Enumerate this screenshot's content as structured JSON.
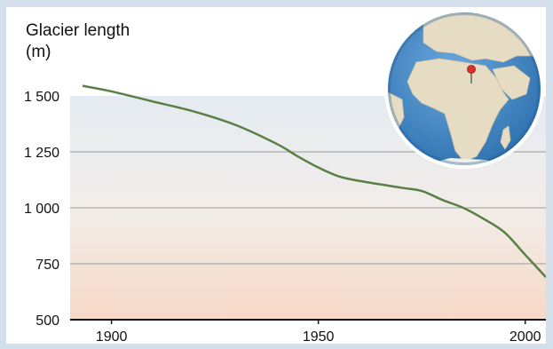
{
  "chart_data": {
    "type": "line",
    "ylabel_line1": "Glacier length",
    "ylabel_line2": "(m)",
    "xlabel": "",
    "xlim": [
      1890,
      2005
    ],
    "ylim": [
      500,
      1500
    ],
    "y_ticks": [
      500,
      750,
      1000,
      1250,
      1500
    ],
    "y_tick_labels": [
      "500",
      "750",
      "1 000",
      "1 250",
      "1 500"
    ],
    "x_ticks": [
      1900,
      1950,
      2000
    ],
    "x_tick_labels": [
      "1900",
      "1950",
      "2000"
    ],
    "grid": true,
    "series": [
      {
        "color": "#5a7f45",
        "x": [
          1893,
          1900,
          1910,
          1920,
          1930,
          1940,
          1945,
          1950,
          1955,
          1960,
          1970,
          1975,
          1980,
          1985,
          1990,
          1995,
          2000,
          2005
        ],
        "y": [
          1545,
          1520,
          1475,
          1430,
          1370,
          1285,
          1230,
          1180,
          1140,
          1120,
          1090,
          1075,
          1035,
          1000,
          950,
          890,
          790,
          690
        ]
      }
    ]
  },
  "inset": {
    "icon": "globe-map-icon",
    "marker_color": "#d9302c",
    "ocean_color": "#3f86c5",
    "land_color": "#e6dcc4"
  }
}
